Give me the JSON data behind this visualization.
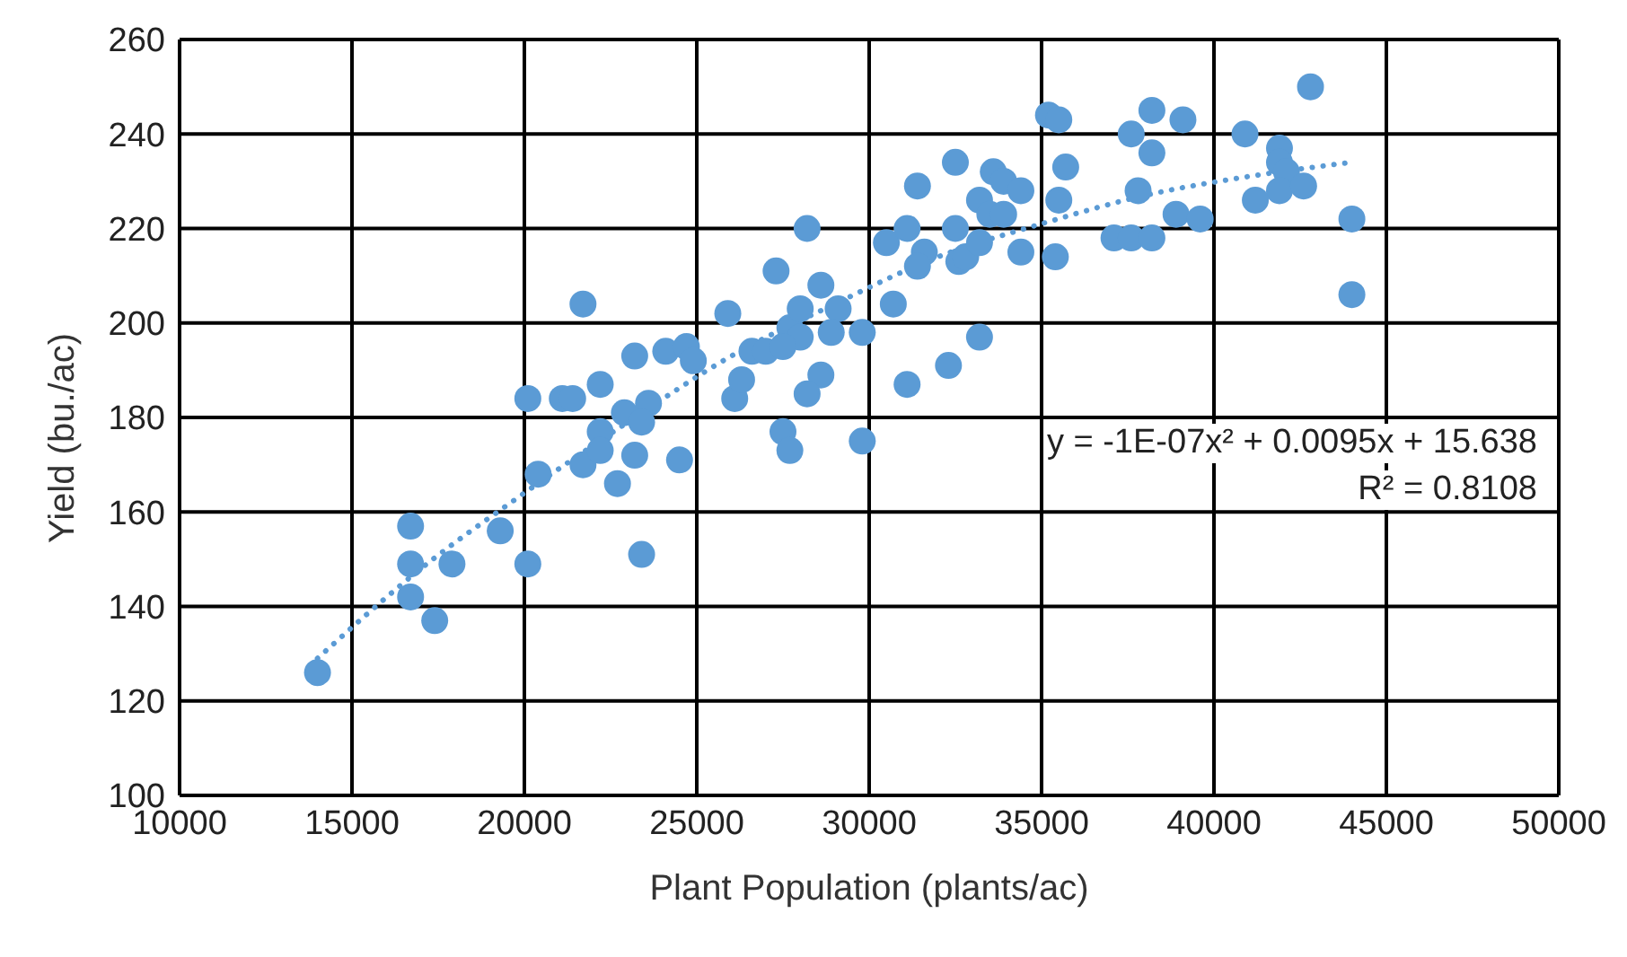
{
  "chart_data": {
    "type": "scatter",
    "xlabel": "Plant Population (plants/ac)",
    "ylabel": "Yield (bu./ac)",
    "xlim": [
      10000,
      50000
    ],
    "xticks": [
      10000,
      15000,
      20000,
      25000,
      30000,
      35000,
      40000,
      45000,
      50000
    ],
    "ylim": [
      100,
      260
    ],
    "yticks": [
      100,
      120,
      140,
      160,
      180,
      200,
      220,
      240,
      260
    ],
    "grid": true,
    "legend": false,
    "annotations": [
      "y = -1E-07x² + 0.0095x + 15.638",
      "R² = 0.8108"
    ],
    "series": [
      {
        "type": "scatter",
        "marker": "circle",
        "color": "#5b9bd5",
        "x": [
          14000,
          16700,
          16700,
          16700,
          17400,
          17900,
          19300,
          20100,
          20100,
          20400,
          21700,
          22700,
          23400,
          21700,
          21100,
          21400,
          22200,
          23200,
          24100,
          24700,
          24900,
          22900,
          23600,
          23400,
          22200,
          22200,
          23200,
          24500,
          28200,
          27300,
          25900,
          26100,
          26300,
          26600,
          27000,
          27700,
          28000,
          28000,
          27500,
          28600,
          29100,
          28900,
          29800,
          28600,
          28200,
          27500,
          27700,
          29800,
          31100,
          32300,
          33200,
          30700,
          30500,
          31100,
          31600,
          31400,
          32500,
          32600,
          32800,
          33200,
          34400,
          35400,
          32500,
          31400,
          33600,
          33900,
          34400,
          33200,
          33500,
          33900,
          35500,
          35700,
          35200,
          35500,
          37800,
          37100,
          37600,
          38200,
          37600,
          38200,
          38200,
          39100,
          38900,
          39600,
          40900,
          42800,
          41900,
          41900,
          42100,
          41900,
          42600,
          41200,
          44000,
          44000
        ],
        "values": [
          126,
          157,
          149,
          142,
          137,
          149,
          156,
          149,
          184,
          168,
          170,
          166,
          151,
          204,
          184,
          184,
          187,
          193,
          194,
          195,
          192,
          181,
          183,
          179,
          177,
          173,
          172,
          171,
          220,
          211,
          202,
          184,
          188,
          194,
          194,
          199,
          203,
          197,
          195,
          208,
          203,
          198,
          198,
          189,
          185,
          177,
          173,
          175,
          187,
          191,
          197,
          204,
          217,
          220,
          215,
          212,
          220,
          213,
          214,
          217,
          215,
          214,
          234,
          229,
          232,
          230,
          228,
          226,
          223,
          223,
          226,
          233,
          244,
          243,
          228,
          218,
          218,
          218,
          240,
          245,
          236,
          243,
          223,
          222,
          240,
          250,
          237,
          234,
          232,
          228,
          229,
          226,
          222,
          206
        ]
      },
      {
        "type": "line",
        "marker": "none",
        "line_style": "dotted",
        "color": "#5b9bd5",
        "x": [
          14000,
          17000,
          20000,
          23000,
          26000,
          29000,
          32000,
          35000,
          38000,
          41000,
          44000
        ],
        "values": [
          129,
          148,
          164,
          179,
          193,
          204,
          214,
          221,
          227,
          231,
          234
        ]
      }
    ]
  }
}
